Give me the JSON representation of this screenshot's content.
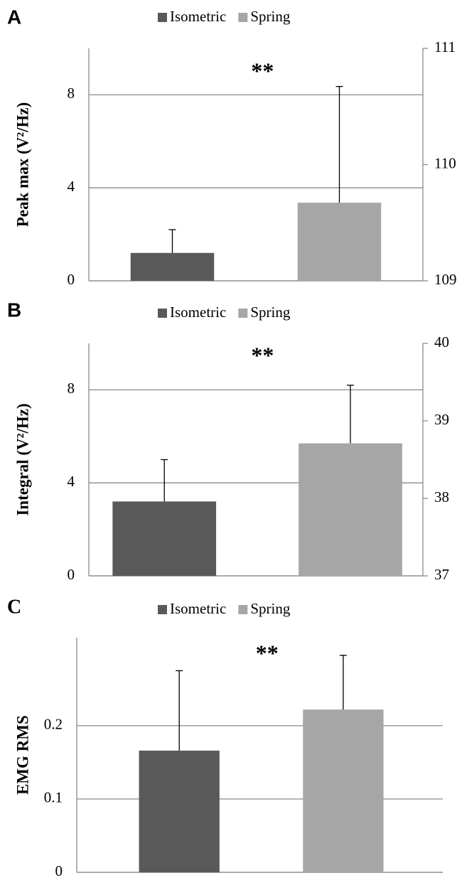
{
  "chart_data": [
    {
      "type": "bar",
      "panel": "A",
      "annotation": "**",
      "y_label": "Peak max (V²/Hz)",
      "categories": [
        null
      ],
      "series": [
        {
          "name": "Isometric",
          "color": "#595959",
          "values": [
            1.2
          ],
          "errors": [
            1.0
          ]
        },
        {
          "name": "Spring",
          "color": "#a6a6a6",
          "values": [
            3.36
          ],
          "errors": [
            5.0
          ]
        }
      ],
      "ylim": [
        0,
        10
      ],
      "yticks": [
        0,
        4,
        8
      ],
      "y2lim": [
        109,
        111
      ],
      "y2ticks": [
        109,
        110,
        111
      ],
      "grid": true
    },
    {
      "type": "bar",
      "panel": "B",
      "annotation": "**",
      "y_label": "Integral (V²/Hz)",
      "categories": [
        null
      ],
      "series": [
        {
          "name": "Isometric",
          "color": "#595959",
          "values": [
            3.2
          ],
          "errors": [
            1.8
          ]
        },
        {
          "name": "Spring",
          "color": "#a6a6a6",
          "values": [
            5.7
          ],
          "errors": [
            2.5
          ]
        }
      ],
      "ylim": [
        0,
        10
      ],
      "yticks": [
        0,
        4,
        8
      ],
      "y2lim": [
        37,
        40
      ],
      "y2ticks": [
        37,
        38,
        39,
        40
      ],
      "grid": true
    },
    {
      "type": "bar",
      "panel": "C",
      "annotation": "**",
      "y_label": "EMG RMS",
      "categories": [
        null
      ],
      "series": [
        {
          "name": "Isometric",
          "color": "#595959",
          "values": [
            0.166
          ],
          "errors": [
            0.109
          ]
        },
        {
          "name": "Spring",
          "color": "#a6a6a6",
          "values": [
            0.222
          ],
          "errors": [
            0.074
          ]
        }
      ],
      "ylim": [
        0,
        0.32
      ],
      "yticks": [
        0,
        0.1,
        0.2
      ],
      "grid": true
    }
  ]
}
